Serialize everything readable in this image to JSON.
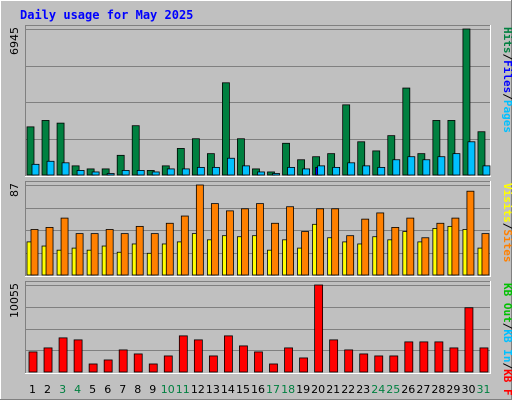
{
  "chart_data": {
    "type": "bar",
    "title": "Daily usage for May 2025",
    "categories": [
      "1",
      "2",
      "3",
      "4",
      "5",
      "6",
      "7",
      "8",
      "9",
      "10",
      "11",
      "12",
      "13",
      "14",
      "15",
      "16",
      "17",
      "18",
      "19",
      "20",
      "21",
      "22",
      "23",
      "24",
      "25",
      "26",
      "27",
      "28",
      "29",
      "30",
      "31"
    ],
    "weekend_days": [
      "3",
      "4",
      "10",
      "11",
      "17",
      "18",
      "24",
      "25",
      "31"
    ],
    "panels": [
      {
        "id": "top",
        "ymax_label": "6945",
        "ymax": 6945,
        "axis_labels": [
          {
            "text": "Hits",
            "color": "#008040"
          },
          {
            "text": "Files",
            "color": "#0000ff"
          },
          {
            "text": "Pages",
            "color": "#00c0ff"
          }
        ],
        "series": [
          {
            "name": "Hits",
            "color": "#008040",
            "values": [
              2290,
              2595,
              2468,
              435,
              290,
              290,
              936,
              2345,
              217,
              435,
              1263,
              1725,
              1016,
              4386,
              1725,
              290,
              145,
              1509,
              725,
              870,
              1016,
              3337,
              1580,
              1146,
              1872,
              4136,
              1016,
              2595,
              2595,
              6945,
              2058
            ]
          },
          {
            "name": "Files",
            "color": "#0000ff",
            "values": [
              0,
              0,
              0,
              0,
              0,
              0,
              0,
              0,
              0,
              0,
              0,
              0,
              0,
              0,
              0,
              0,
              0,
              0,
              0,
              362,
              0,
              0,
              0,
              0,
              0,
              0,
              0,
              0,
              0,
              0,
              0
            ]
          },
          {
            "name": "Pages",
            "color": "#00c0ff",
            "values": [
              508,
              653,
              580,
              217,
              145,
              72,
              217,
              217,
              145,
              290,
              290,
              362,
              362,
              797,
              435,
              145,
              72,
              362,
              290,
              435,
              362,
              580,
              435,
              362,
              725,
              870,
              725,
              870,
              1016,
              1580,
              435
            ]
          }
        ]
      },
      {
        "id": "middle",
        "ymax_label": "87",
        "ymax": 87,
        "axis_labels": [
          {
            "text": "Visits",
            "color": "#ffff00"
          },
          {
            "text": "Sites",
            "color": "#ff8000"
          }
        ],
        "series": [
          {
            "name": "Visits",
            "color": "#ffff00",
            "values": [
              32,
              28,
              24,
              26,
              24,
              28,
              22,
              30,
              21,
              30,
              32,
              40,
              34,
              38,
              37,
              38,
              24,
              34,
              26,
              49,
              36,
              32,
              30,
              37,
              34,
              42,
              32,
              45,
              47,
              44,
              26
            ]
          },
          {
            "name": "Sites",
            "color": "#ff8000",
            "values": [
              44,
              46,
              55,
              40,
              40,
              44,
              40,
              47,
              40,
              50,
              57,
              87,
              69,
              62,
              64,
              69,
              50,
              66,
              42,
              64,
              64,
              38,
              54,
              60,
              46,
              55,
              36,
              50,
              55,
              81,
              40
            ]
          }
        ]
      },
      {
        "id": "bottom",
        "ymax_label": "10055",
        "ymax": 10055,
        "axis_labels": [
          {
            "text": "KB Out",
            "color": "#00c000"
          },
          {
            "text": "KB In",
            "color": "#00c0ff"
          },
          {
            "text": "KB F",
            "color": "#ff0000"
          }
        ],
        "series": [
          {
            "name": "KB F",
            "color": "#ff0000",
            "values": [
              2320,
              2784,
              3944,
              3712,
              928,
              1392,
              2552,
              2088,
              928,
              1856,
              4176,
              3712,
              1856,
              4176,
              3016,
              2320,
              928,
              2784,
              1624,
              10055,
              3712,
              2552,
              2088,
              1856,
              1856,
              3480,
              3480,
              3480,
              2784,
              7424,
              2784
            ]
          }
        ]
      }
    ]
  }
}
